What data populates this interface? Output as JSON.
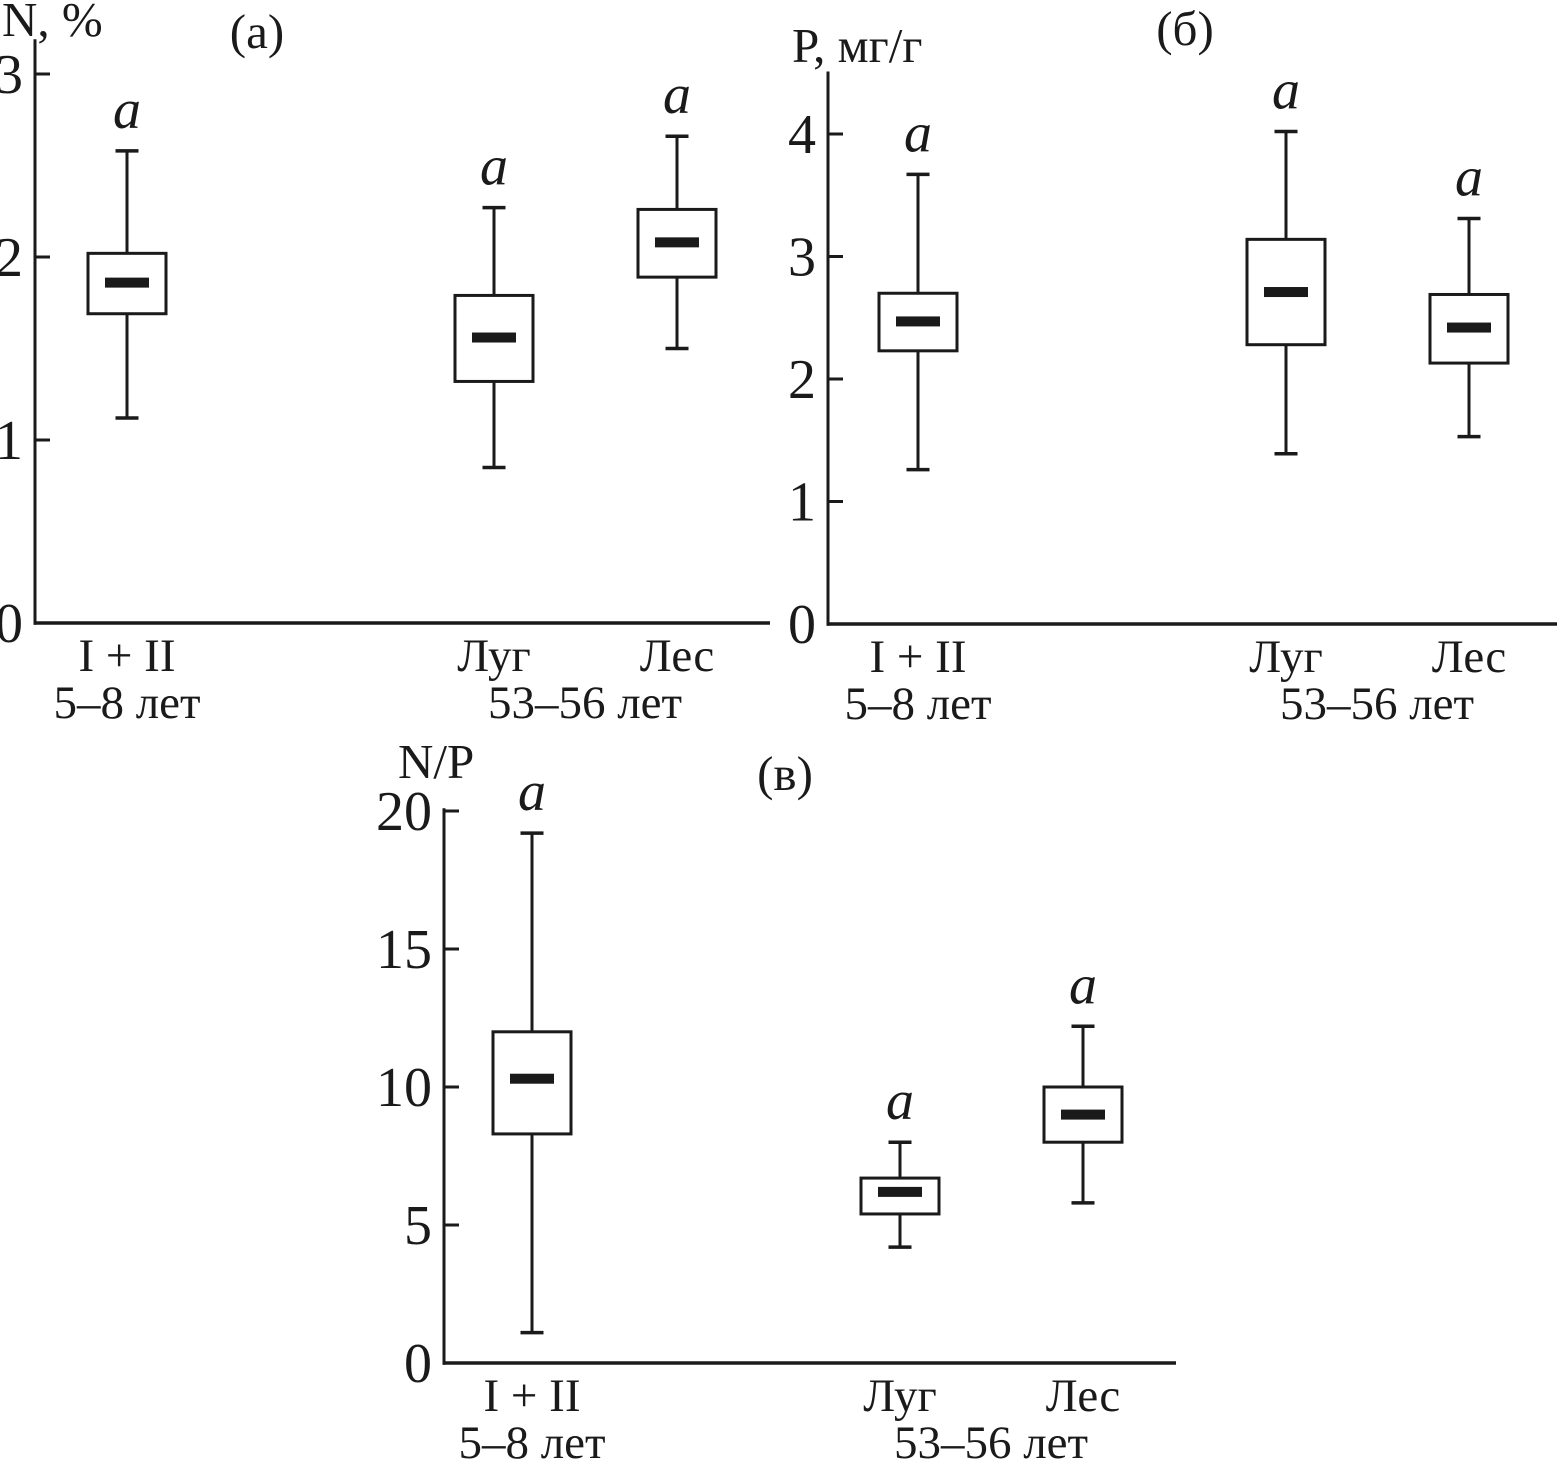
{
  "colors": {
    "ink": "#1a1a1a",
    "background": "#ffffff"
  },
  "chart_data": [
    {
      "type": "boxplot",
      "panel_label": "(а)",
      "ylabel": "N, %",
      "ylim": [
        0,
        3.19
      ],
      "yticks": [
        0,
        1,
        2,
        3
      ],
      "grid": false,
      "age_groups": [
        {
          "label": "5–8 лет",
          "span": [
            0,
            0
          ]
        },
        {
          "label": "53–56 лет",
          "span": [
            1,
            2
          ]
        }
      ],
      "groups": [
        {
          "category": "I + II",
          "sig_label": "a",
          "whisker_low": 1.12,
          "q1": 1.69,
          "median": 1.86,
          "q3": 2.02,
          "whisker_high": 2.58
        },
        {
          "category": "Луг",
          "sig_label": "a",
          "whisker_low": 0.85,
          "q1": 1.32,
          "median": 1.56,
          "q3": 1.79,
          "whisker_high": 2.27
        },
        {
          "category": "Лес",
          "sig_label": "a",
          "whisker_low": 1.5,
          "q1": 1.89,
          "median": 2.08,
          "q3": 2.26,
          "whisker_high": 2.66
        }
      ]
    },
    {
      "type": "boxplot",
      "panel_label": "(б)",
      "ylabel": "Р, мг/г",
      "ylim": [
        0,
        4.51
      ],
      "yticks": [
        0,
        1,
        2,
        3,
        4
      ],
      "grid": false,
      "age_groups": [
        {
          "label": "5–8 лет",
          "span": [
            0,
            0
          ]
        },
        {
          "label": "53–56 лет",
          "span": [
            1,
            2
          ]
        }
      ],
      "groups": [
        {
          "category": "I + II",
          "sig_label": "a",
          "whisker_low": 1.26,
          "q1": 2.23,
          "median": 2.47,
          "q3": 2.7,
          "whisker_high": 3.67
        },
        {
          "category": "Луг",
          "sig_label": "a",
          "whisker_low": 1.39,
          "q1": 2.28,
          "median": 2.71,
          "q3": 3.14,
          "whisker_high": 4.02
        },
        {
          "category": "Лес",
          "sig_label": "a",
          "whisker_low": 1.53,
          "q1": 2.13,
          "median": 2.42,
          "q3": 2.69,
          "whisker_high": 3.31
        }
      ]
    },
    {
      "type": "boxplot",
      "panel_label": "(в)",
      "ylabel": "N/P",
      "ylim": [
        0,
        20.1
      ],
      "yticks": [
        0,
        5,
        10,
        15,
        20
      ],
      "grid": false,
      "age_groups": [
        {
          "label": "5–8 лет",
          "span": [
            0,
            0
          ]
        },
        {
          "label": "53–56 лет",
          "span": [
            1,
            2
          ]
        }
      ],
      "groups": [
        {
          "category": "I + II",
          "sig_label": "a",
          "whisker_low": 1.1,
          "q1": 8.3,
          "median": 10.3,
          "q3": 12.0,
          "whisker_high": 19.2
        },
        {
          "category": "Луг",
          "sig_label": "a",
          "whisker_low": 4.2,
          "q1": 5.4,
          "median": 6.2,
          "q3": 6.7,
          "whisker_high": 8.0
        },
        {
          "category": "Лес",
          "sig_label": "a",
          "whisker_low": 5.8,
          "q1": 8.0,
          "median": 9.0,
          "q3": 10.0,
          "whisker_high": 12.2
        }
      ]
    }
  ]
}
